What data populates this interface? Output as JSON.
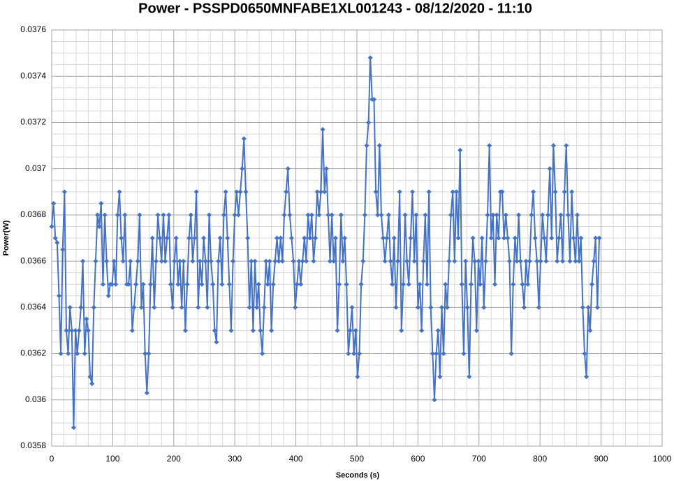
{
  "chart_data": {
    "type": "line",
    "title": "Power - PSSPD0650MNFABE1XL001243 - 08/12/2020 - 11:10",
    "x_label": "Seconds (s)",
    "y_label": "Power(W)",
    "xlim": [
      0,
      1000
    ],
    "xticks": [
      0,
      100,
      200,
      300,
      400,
      500,
      600,
      700,
      800,
      900,
      1000
    ],
    "ylim": [
      0.0358,
      0.0376
    ],
    "yticks": [
      0.0358,
      0.036,
      0.0362,
      0.0364,
      0.0366,
      0.0368,
      0.037,
      0.0372,
      0.0374,
      0.0376
    ],
    "grid": true,
    "series": [
      {
        "color": "#4472c4",
        "x": [
          0,
          3,
          6,
          9,
          12,
          15,
          18,
          21,
          24,
          27,
          30,
          33,
          36,
          39,
          42,
          45,
          48,
          51,
          54,
          57,
          60,
          63,
          66,
          69,
          72,
          75,
          78,
          81,
          84,
          87,
          90,
          93,
          96,
          99,
          102,
          105,
          108,
          111,
          114,
          117,
          120,
          123,
          126,
          129,
          132,
          135,
          138,
          141,
          144,
          147,
          150,
          153,
          156,
          159,
          162,
          165,
          168,
          171,
          174,
          177,
          180,
          183,
          186,
          189,
          192,
          195,
          198,
          201,
          204,
          207,
          210,
          213,
          216,
          219,
          222,
          225,
          228,
          231,
          234,
          237,
          240,
          243,
          246,
          249,
          252,
          255,
          258,
          261,
          264,
          267,
          270,
          273,
          276,
          279,
          282,
          285,
          288,
          291,
          294,
          297,
          300,
          303,
          306,
          309,
          312,
          315,
          318,
          321,
          324,
          327,
          330,
          333,
          336,
          339,
          342,
          345,
          348,
          351,
          354,
          357,
          360,
          363,
          366,
          369,
          372,
          375,
          378,
          381,
          384,
          387,
          390,
          393,
          396,
          399,
          402,
          405,
          408,
          411,
          414,
          417,
          420,
          423,
          426,
          429,
          432,
          435,
          438,
          441,
          444,
          447,
          450,
          453,
          456,
          459,
          462,
          465,
          468,
          471,
          474,
          477,
          480,
          483,
          486,
          489,
          492,
          495,
          498,
          501,
          504,
          507,
          510,
          513,
          516,
          519,
          522,
          525,
          528,
          531,
          534,
          537,
          540,
          543,
          546,
          549,
          552,
          555,
          558,
          561,
          564,
          567,
          570,
          573,
          576,
          579,
          582,
          585,
          588,
          591,
          594,
          597,
          600,
          603,
          606,
          609,
          612,
          615,
          618,
          621,
          624,
          627,
          630,
          633,
          636,
          639,
          642,
          645,
          648,
          651,
          654,
          657,
          660,
          663,
          666,
          669,
          672,
          675,
          678,
          681,
          684,
          687,
          690,
          693,
          696,
          699,
          702,
          705,
          708,
          711,
          714,
          717,
          720,
          723,
          726,
          729,
          732,
          735,
          738,
          741,
          744,
          747,
          750,
          753,
          756,
          759,
          762,
          765,
          768,
          771,
          774,
          777,
          780,
          783,
          786,
          789,
          792,
          795,
          798,
          801,
          804,
          807,
          810,
          813,
          816,
          819,
          822,
          825,
          828,
          831,
          834,
          837,
          840,
          843,
          846,
          849,
          852,
          855,
          858,
          861,
          864,
          867,
          870,
          873,
          876,
          879,
          882,
          885,
          888,
          891,
          894,
          897
        ],
        "values": [
          0.03675,
          0.03685,
          0.0367,
          0.03668,
          0.03645,
          0.0362,
          0.03665,
          0.0369,
          0.0363,
          0.0362,
          0.0364,
          0.0363,
          0.03588,
          0.0363,
          0.0362,
          0.0363,
          0.0364,
          0.0366,
          0.0362,
          0.03635,
          0.0363,
          0.0361,
          0.03607,
          0.0364,
          0.0366,
          0.0368,
          0.03675,
          0.03685,
          0.0365,
          0.0368,
          0.0366,
          0.03645,
          0.0365,
          0.0365,
          0.0366,
          0.0365,
          0.0368,
          0.0369,
          0.0367,
          0.0366,
          0.0368,
          0.0365,
          0.0365,
          0.0366,
          0.0363,
          0.0364,
          0.0365,
          0.0366,
          0.0368,
          0.0364,
          0.0365,
          0.0362,
          0.03603,
          0.0362,
          0.0365,
          0.0367,
          0.0364,
          0.0366,
          0.0368,
          0.0367,
          0.0366,
          0.0368,
          0.0366,
          0.0367,
          0.0368,
          0.0365,
          0.0364,
          0.0366,
          0.0367,
          0.0365,
          0.0366,
          0.0364,
          0.0366,
          0.0363,
          0.0365,
          0.0367,
          0.0368,
          0.0366,
          0.0367,
          0.0369,
          0.0364,
          0.0366,
          0.0365,
          0.0367,
          0.0366,
          0.0364,
          0.0368,
          0.0366,
          0.0365,
          0.0363,
          0.03625,
          0.0366,
          0.0367,
          0.0365,
          0.0368,
          0.0369,
          0.0367,
          0.0365,
          0.0363,
          0.0366,
          0.0368,
          0.0369,
          0.0368,
          0.0369,
          0.037,
          0.03713,
          0.0369,
          0.0367,
          0.0364,
          0.0366,
          0.0363,
          0.0366,
          0.0364,
          0.0365,
          0.0363,
          0.0362,
          0.0364,
          0.0366,
          0.0365,
          0.0366,
          0.0363,
          0.0365,
          0.0366,
          0.0367,
          0.0366,
          0.0367,
          0.0366,
          0.0368,
          0.0369,
          0.037,
          0.0368,
          0.0367,
          0.0366,
          0.0364,
          0.0365,
          0.0366,
          0.0365,
          0.0366,
          0.0367,
          0.0366,
          0.0368,
          0.0367,
          0.0368,
          0.0366,
          0.0367,
          0.0369,
          0.0368,
          0.0369,
          0.03717,
          0.0369,
          0.037,
          0.0368,
          0.0366,
          0.0368,
          0.0366,
          0.0367,
          0.0363,
          0.0365,
          0.0368,
          0.0366,
          0.0367,
          0.0365,
          0.0362,
          0.0363,
          0.0364,
          0.0362,
          0.0363,
          0.0361,
          0.0362,
          0.0365,
          0.0366,
          0.0368,
          0.0371,
          0.0372,
          0.03748,
          0.0373,
          0.0373,
          0.0369,
          0.0368,
          0.0371,
          0.0368,
          0.0367,
          0.0366,
          0.0367,
          0.0368,
          0.0366,
          0.0365,
          0.0367,
          0.0364,
          0.0366,
          0.0369,
          0.0363,
          0.0365,
          0.0368,
          0.0366,
          0.0365,
          0.0367,
          0.0369,
          0.0366,
          0.0368,
          0.0364,
          0.0365,
          0.0363,
          0.0366,
          0.0368,
          0.0365,
          0.0369,
          0.0364,
          0.0362,
          0.036,
          0.0362,
          0.0363,
          0.0361,
          0.0364,
          0.0362,
          0.0365,
          0.0364,
          0.0366,
          0.0368,
          0.0369,
          0.0366,
          0.0369,
          0.0367,
          0.03708,
          0.0365,
          0.0362,
          0.0366,
          0.0364,
          0.0361,
          0.0365,
          0.0367,
          0.0366,
          0.0363,
          0.0366,
          0.0365,
          0.0367,
          0.0364,
          0.0366,
          0.0368,
          0.0371,
          0.0367,
          0.0368,
          0.0365,
          0.0368,
          0.0367,
          0.0369,
          0.0369,
          0.0367,
          0.0368,
          0.0367,
          0.0366,
          0.0362,
          0.0365,
          0.0367,
          0.0366,
          0.0368,
          0.0366,
          0.0365,
          0.0364,
          0.0366,
          0.0365,
          0.0366,
          0.0368,
          0.0369,
          0.0367,
          0.0366,
          0.0364,
          0.0366,
          0.0368,
          0.0367,
          0.0366,
          0.0368,
          0.037,
          0.0367,
          0.0371,
          0.0369,
          0.0366,
          0.0367,
          0.0368,
          0.0366,
          0.0369,
          0.0371,
          0.0368,
          0.0366,
          0.0369,
          0.0367,
          0.0366,
          0.0368,
          0.0366,
          0.0367,
          0.0364,
          0.0362,
          0.0361,
          0.0364,
          0.0363,
          0.0365,
          0.0366,
          0.0367,
          0.0364,
          0.0367
        ]
      }
    ]
  }
}
